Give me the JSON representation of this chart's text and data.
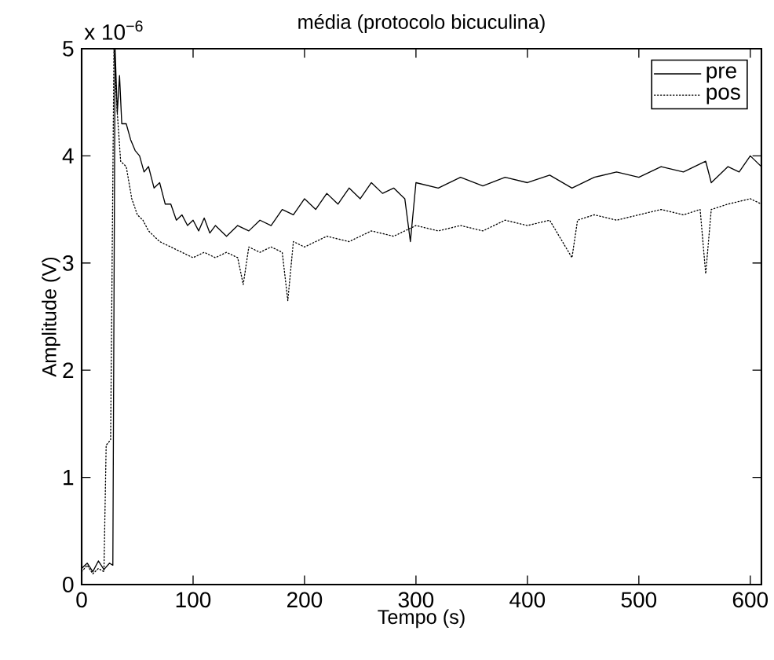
{
  "chart_data": {
    "type": "line",
    "title": "média (protocolo bicuculina)",
    "xlabel": "Tempo (s)",
    "ylabel": "Amplitude (V)",
    "annotations": [
      "x 10$^{−6}$"
    ],
    "xlim": [
      0,
      610
    ],
    "xticks": [
      0,
      100,
      200,
      300,
      400,
      500,
      600
    ],
    "ylim": [
      0,
      5
    ],
    "yticks": [
      0,
      1,
      2,
      3,
      4,
      5
    ],
    "grid": false,
    "legend": "top right",
    "marker": "none",
    "series": [
      {
        "name": "pre",
        "color": "#000000",
        "line_style": "solid",
        "x": [
          0,
          5,
          10,
          15,
          20,
          25,
          28,
          30,
          32,
          34,
          36,
          40,
          44,
          48,
          52,
          56,
          60,
          65,
          70,
          75,
          80,
          85,
          90,
          95,
          100,
          105,
          110,
          115,
          120,
          130,
          140,
          150,
          160,
          170,
          180,
          190,
          200,
          210,
          220,
          230,
          240,
          250,
          260,
          270,
          280,
          290,
          295,
          300,
          320,
          340,
          360,
          380,
          400,
          420,
          440,
          460,
          480,
          500,
          520,
          540,
          560,
          565,
          580,
          590,
          600,
          610
        ],
        "values": [
          0.15,
          0.2,
          0.12,
          0.22,
          0.14,
          0.2,
          0.18,
          5,
          4.4,
          4.75,
          4.3,
          4.3,
          4.15,
          4.05,
          4,
          3.85,
          3.9,
          3.7,
          3.75,
          3.55,
          3.55,
          3.4,
          3.45,
          3.35,
          3.4,
          3.3,
          3.42,
          3.28,
          3.35,
          3.25,
          3.35,
          3.3,
          3.4,
          3.35,
          3.5,
          3.45,
          3.6,
          3.5,
          3.65,
          3.55,
          3.7,
          3.6,
          3.75,
          3.65,
          3.7,
          3.6,
          3.2,
          3.75,
          3.7,
          3.8,
          3.72,
          3.8,
          3.75,
          3.82,
          3.7,
          3.8,
          3.85,
          3.8,
          3.9,
          3.85,
          3.95,
          3.75,
          3.9,
          3.85,
          4,
          3.9
        ]
      },
      {
        "name": "pos",
        "color": "#000000",
        "line_style": "dotted",
        "x": [
          0,
          5,
          10,
          15,
          20,
          22,
          26,
          29,
          32,
          35,
          40,
          45,
          50,
          55,
          60,
          70,
          80,
          90,
          100,
          110,
          120,
          130,
          140,
          145,
          150,
          160,
          170,
          180,
          185,
          190,
          200,
          220,
          240,
          260,
          280,
          300,
          320,
          340,
          360,
          380,
          400,
          420,
          440,
          445,
          460,
          480,
          500,
          520,
          540,
          555,
          560,
          565,
          580,
          600,
          610
        ],
        "values": [
          0.12,
          0.18,
          0.1,
          0.15,
          0.12,
          1.3,
          1.35,
          5,
          4.4,
          3.95,
          3.9,
          3.6,
          3.45,
          3.4,
          3.3,
          3.2,
          3.15,
          3.1,
          3.05,
          3.1,
          3.05,
          3.1,
          3.05,
          2.8,
          3.15,
          3.1,
          3.15,
          3.1,
          2.65,
          3.2,
          3.15,
          3.25,
          3.2,
          3.3,
          3.25,
          3.35,
          3.3,
          3.35,
          3.3,
          3.4,
          3.35,
          3.4,
          3.05,
          3.4,
          3.45,
          3.4,
          3.45,
          3.5,
          3.45,
          3.5,
          2.9,
          3.5,
          3.55,
          3.6,
          3.55
        ]
      }
    ]
  }
}
